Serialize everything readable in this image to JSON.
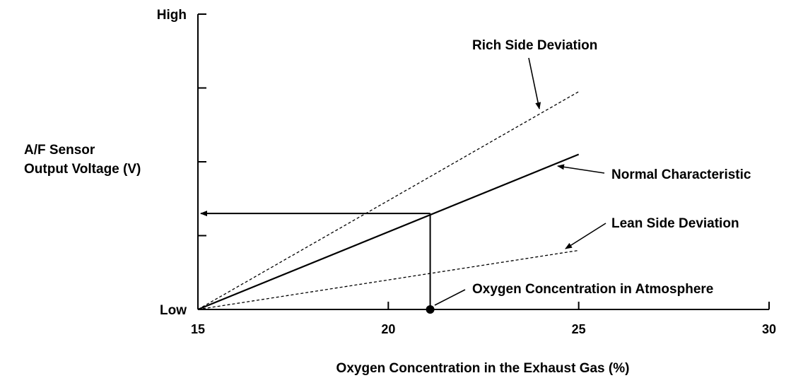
{
  "chart_data": {
    "type": "line",
    "title": "",
    "xlabel": "Oxygen Concentration in the Exhaust Gas (%)",
    "ylabel_lines": [
      "A/F Sensor",
      "Output Voltage (V)"
    ],
    "xlim": [
      15,
      30
    ],
    "ylim": [
      0,
      4
    ],
    "x_ticks": [
      15,
      20,
      25,
      30
    ],
    "y_tick_values": [
      0,
      1,
      2,
      3,
      4
    ],
    "y_tick_labels": [
      {
        "value": 0,
        "label": "Low"
      },
      {
        "value": 4,
        "label": "High"
      }
    ],
    "grid": false,
    "series": [
      {
        "name": "Normal Characteristic",
        "style": "solid",
        "x": [
          15,
          25
        ],
        "y": [
          0,
          2.1
        ]
      },
      {
        "name": "Rich Side Deviation",
        "style": "dashed",
        "x": [
          15,
          25
        ],
        "y": [
          0,
          2.95
        ]
      },
      {
        "name": "Lean Side Deviation",
        "style": "dashed",
        "x": [
          15,
          25
        ],
        "y": [
          0,
          0.8
        ]
      }
    ],
    "reference": {
      "label": "Oxygen Concentration in Atmosphere",
      "x": 21.1,
      "y": 1.3
    }
  }
}
